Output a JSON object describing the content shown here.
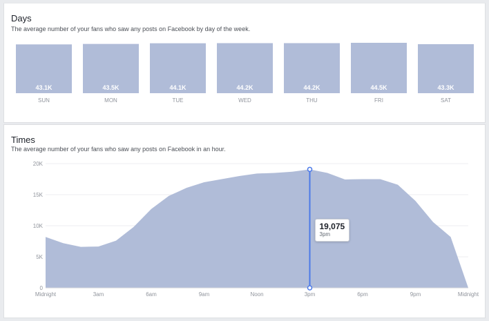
{
  "days_section": {
    "title": "Days",
    "subtitle": "The average number of your fans who saw any posts on Facebook by day of the week."
  },
  "times_section": {
    "title": "Times",
    "subtitle": "The average number of your fans who saw any posts on Facebook in an hour."
  },
  "tooltip": {
    "value": "19,075",
    "label": "3pm"
  },
  "colors": {
    "bar_fill": "#b0bcd8",
    "area_fill": "#b0bcd8",
    "highlight_line": "#4c7ae8",
    "grid": "#eceef2",
    "axis": "#d3d6db"
  },
  "chart_data": [
    {
      "type": "bar",
      "categories": [
        "SUN",
        "MON",
        "TUE",
        "WED",
        "THU",
        "FRI",
        "SAT"
      ],
      "values": [
        43.1,
        43.5,
        44.1,
        44.2,
        44.2,
        44.5,
        43.3
      ],
      "value_labels": [
        "43.1K",
        "43.5K",
        "44.1K",
        "44.2K",
        "44.2K",
        "44.5K",
        "43.3K"
      ],
      "title": "Days",
      "units": "thousand fans",
      "ylim": [
        0,
        44.5
      ],
      "grid": false
    },
    {
      "type": "area",
      "x": [
        0,
        1,
        2,
        3,
        4,
        5,
        6,
        7,
        8,
        9,
        10,
        11,
        12,
        13,
        14,
        15,
        16,
        17,
        18,
        19,
        20,
        21,
        22,
        23,
        24
      ],
      "values": [
        8200,
        7200,
        6600,
        6650,
        7600,
        9800,
        12700,
        14800,
        16100,
        17000,
        17500,
        18000,
        18400,
        18500,
        18700,
        19075,
        18500,
        17450,
        17500,
        17500,
        16600,
        14000,
        10600,
        8200,
        0
      ],
      "values_note": "",
      "xticks": [
        0,
        3,
        6,
        9,
        12,
        15,
        18,
        21,
        24
      ],
      "xtick_labels": [
        "Midnight",
        "3am",
        "6am",
        "9am",
        "Noon",
        "3pm",
        "6pm",
        "9pm",
        "Midnight"
      ],
      "yticks": [
        0,
        5000,
        10000,
        15000,
        20000
      ],
      "ytick_labels": [
        "0",
        "5K",
        "10K",
        "15K",
        "20K"
      ],
      "ylim": [
        0,
        20000
      ],
      "xlim": [
        0,
        24
      ],
      "title": "Times",
      "grid": true,
      "highlight": {
        "x": 15,
        "value": 19075,
        "label": "3pm"
      }
    }
  ]
}
